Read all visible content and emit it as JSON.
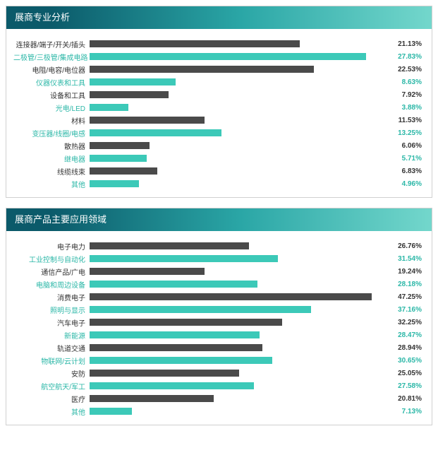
{
  "colors": {
    "bar_dark": "#4a4a4a",
    "bar_teal": "#3cc9b8",
    "text_dark": "#333333",
    "text_teal": "#2bb7a7"
  },
  "chart1": {
    "title": "展商专业分析",
    "max_scale": 30,
    "rows": [
      {
        "label": "连接器/端子/开关/插头",
        "value": 21.13,
        "display": "21.13%",
        "theme": "dark"
      },
      {
        "label": "二极管/三极管/集成电路",
        "value": 27.83,
        "display": "27.83%",
        "theme": "teal"
      },
      {
        "label": "电阻/电容/电位器",
        "value": 22.53,
        "display": "22.53%",
        "theme": "dark"
      },
      {
        "label": "仪器仪表和工具",
        "value": 8.63,
        "display": "8.63%",
        "theme": "teal"
      },
      {
        "label": "设备和工具",
        "value": 7.92,
        "display": "7.92%",
        "theme": "dark"
      },
      {
        "label": "光电/LED",
        "value": 3.88,
        "display": "3.88%",
        "theme": "teal"
      },
      {
        "label": "材料",
        "value": 11.53,
        "display": "11.53%",
        "theme": "dark"
      },
      {
        "label": "变压器/线圈/电感",
        "value": 13.25,
        "display": "13.25%",
        "theme": "teal"
      },
      {
        "label": "散热器",
        "value": 6.06,
        "display": "6.06%",
        "theme": "dark"
      },
      {
        "label": "继电器",
        "value": 5.71,
        "display": "5.71%",
        "theme": "teal"
      },
      {
        "label": "线缆线束",
        "value": 6.83,
        "display": "6.83%",
        "theme": "dark"
      },
      {
        "label": "其他",
        "value": 4.96,
        "display": "4.96%",
        "theme": "teal"
      }
    ]
  },
  "chart2": {
    "title": "展商产品主要应用领域",
    "max_scale": 50,
    "rows": [
      {
        "label": "电子电力",
        "value": 26.76,
        "display": "26.76%",
        "theme": "dark"
      },
      {
        "label": "工业控制与自动化",
        "value": 31.54,
        "display": "31.54%",
        "theme": "teal"
      },
      {
        "label": "通信产品/广电",
        "value": 19.24,
        "display": "19.24%",
        "theme": "dark"
      },
      {
        "label": "电脑和周边设备",
        "value": 28.18,
        "display": "28.18%",
        "theme": "teal"
      },
      {
        "label": "消费电子",
        "value": 47.25,
        "display": "47.25%",
        "theme": "dark"
      },
      {
        "label": "照明与显示",
        "value": 37.16,
        "display": "37.16%",
        "theme": "teal"
      },
      {
        "label": "汽车电子",
        "value": 32.25,
        "display": "32.25%",
        "theme": "dark"
      },
      {
        "label": "新能源",
        "value": 28.47,
        "display": "28.47%",
        "theme": "teal"
      },
      {
        "label": "轨道交通",
        "value": 28.94,
        "display": "28.94%",
        "theme": "dark"
      },
      {
        "label": "物联网/云计划",
        "value": 30.65,
        "display": "30.65%",
        "theme": "teal"
      },
      {
        "label": "安防",
        "value": 25.05,
        "display": "25.05%",
        "theme": "dark"
      },
      {
        "label": "航空航天/军工",
        "value": 27.58,
        "display": "27.58%",
        "theme": "teal"
      },
      {
        "label": "医疗",
        "value": 20.81,
        "display": "20.81%",
        "theme": "dark"
      },
      {
        "label": "其他",
        "value": 7.13,
        "display": "7.13%",
        "theme": "teal"
      }
    ]
  }
}
